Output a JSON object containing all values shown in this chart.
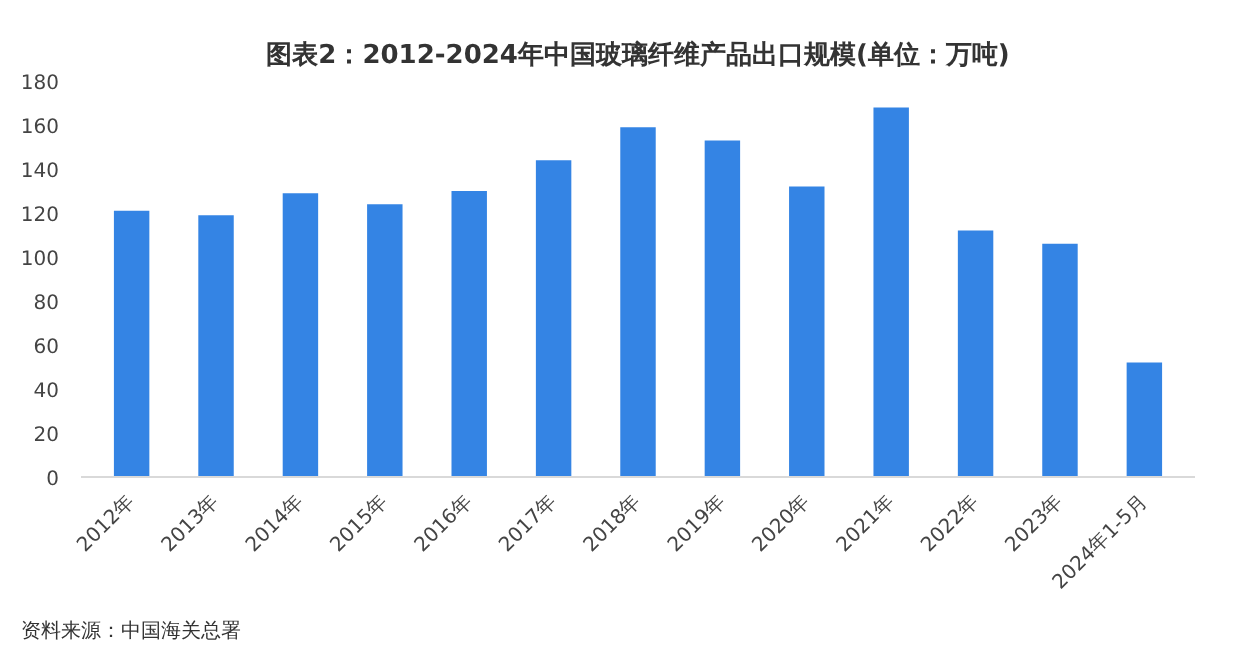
{
  "chart_data": {
    "type": "bar",
    "title": "图表2：2012-2024年中国玻璃纤维产品出口规模(单位：万吨)",
    "categories": [
      "2012年",
      "2013年",
      "2014年",
      "2015年",
      "2016年",
      "2017年",
      "2018年",
      "2019年",
      "2020年",
      "2021年",
      "2022年",
      "2023年",
      "2024年1-5月"
    ],
    "values": [
      121,
      119,
      129,
      124,
      130,
      144,
      159,
      153,
      132,
      168,
      112,
      106,
      52
    ],
    "color": "#3484e4",
    "ylim": [
      0,
      180
    ],
    "yticks": [
      0,
      20,
      40,
      60,
      80,
      100,
      120,
      140,
      160,
      180
    ],
    "grid": false,
    "annotations": [
      "资料来源：中国海关总署"
    ]
  }
}
